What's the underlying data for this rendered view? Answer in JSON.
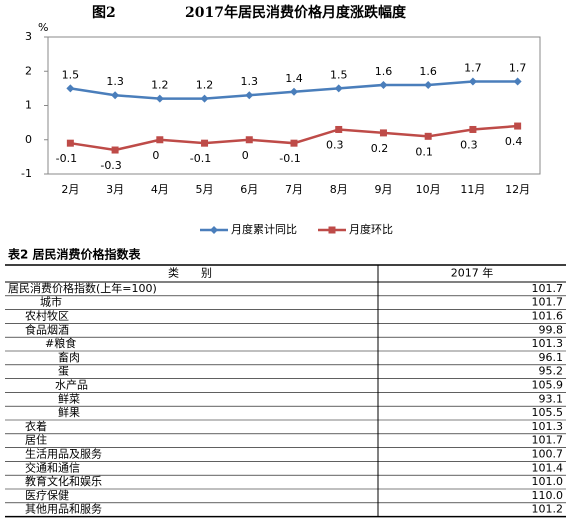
{
  "chart_data": {
    "type": "line",
    "label": "图2",
    "title": "2017年居民消费价格月度涨跌幅度",
    "unit": "%",
    "categories": [
      "2月",
      "3月",
      "4月",
      "5月",
      "6月",
      "7月",
      "8月",
      "9月",
      "10月",
      "11月",
      "12月"
    ],
    "series": [
      {
        "name": "月度累计同比",
        "color": "#4a7ebb",
        "marker": "diamond",
        "values": [
          1.5,
          1.3,
          1.2,
          1.2,
          1.3,
          1.4,
          1.5,
          1.6,
          1.6,
          1.7,
          1.7
        ]
      },
      {
        "name": "月度环比",
        "color": "#be4b48",
        "marker": "square",
        "values": [
          -0.1,
          -0.3,
          0,
          -0.1,
          0,
          -0.1,
          0.3,
          0.2,
          0.1,
          0.3,
          0.4
        ]
      }
    ],
    "ylim": [
      -1,
      3
    ],
    "yticks": [
      -1,
      0,
      1,
      2,
      3
    ],
    "grid": false,
    "legend": "bottom"
  },
  "table": {
    "title": "表2  居民消费价格指数表",
    "header": [
      "类　　别",
      "2017 年"
    ],
    "rows": [
      [
        "居民消费价格指数(上年=100)",
        "101.7"
      ],
      [
        "城市",
        "101.7"
      ],
      [
        "农村牧区",
        "101.6"
      ],
      [
        "食品烟酒",
        "99.8"
      ],
      [
        "#粮食",
        "101.3"
      ],
      [
        "畜肉",
        "96.1"
      ],
      [
        "蛋",
        "95.2"
      ],
      [
        "水产品",
        "105.9"
      ],
      [
        "鲜菜",
        "93.1"
      ],
      [
        "鲜果",
        "105.5"
      ],
      [
        "衣着",
        "101.3"
      ],
      [
        "居住",
        "101.7"
      ],
      [
        "生活用品及服务",
        "100.7"
      ],
      [
        "交通和通信",
        "101.4"
      ],
      [
        "教育文化和娱乐",
        "101.0"
      ],
      [
        "医疗保健",
        "110.0"
      ],
      [
        "其他用品和服务",
        "101.2"
      ]
    ]
  }
}
